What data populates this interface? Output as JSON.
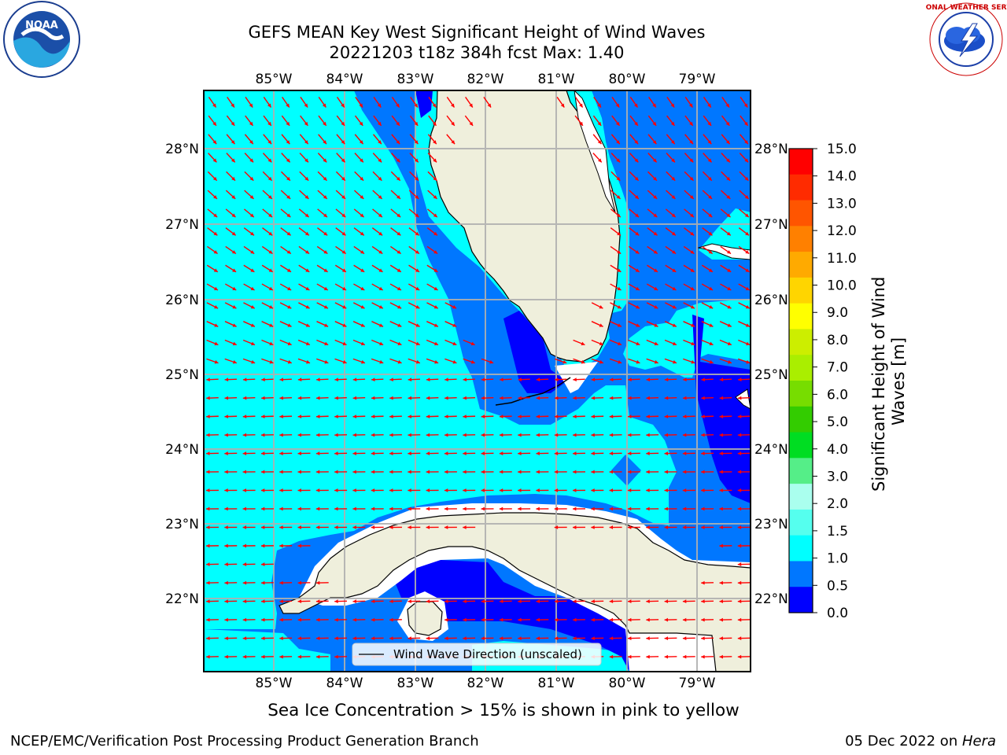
{
  "title": {
    "line1": "GEFS MEAN Key West Significant Height of Wind Waves",
    "line2": "20221203 t18z 384h fcst   Max: 1.40"
  },
  "map": {
    "lon_ticks": [
      "85°W",
      "84°W",
      "83°W",
      "82°W",
      "81°W",
      "80°W",
      "79°W"
    ],
    "lat_ticks": [
      "28°N",
      "27°N",
      "26°N",
      "25°N",
      "24°N",
      "23°N",
      "22°N"
    ],
    "legend_label": "Wind Wave Direction (unscaled)",
    "colors": {
      "land": "#efefdc",
      "frame": "#000000",
      "grid": "#b0b0b0",
      "arrow": "#ff0000"
    }
  },
  "colorbar": {
    "label_line1": "Significant Height of Wind",
    "label_line2": "Waves [m]",
    "ticks": [
      "15.0",
      "14.0",
      "13.0",
      "12.0",
      "11.0",
      "10.0",
      "9.0",
      "8.0",
      "7.0",
      "6.0",
      "5.0",
      "4.0",
      "3.0",
      "2.0",
      "1.5",
      "1.0",
      "0.5",
      "0.0"
    ],
    "colors_top_to_bottom": [
      "#ff0000",
      "#ff2b00",
      "#ff5500",
      "#ff8000",
      "#ffaa00",
      "#ffd500",
      "#ffff00",
      "#ccee00",
      "#aaee00",
      "#77dd00",
      "#33cc00",
      "#00dd22",
      "#55ee88",
      "#aaffee",
      "#55ffee",
      "#00ffff",
      "#0077ff",
      "#0000ff"
    ]
  },
  "caption": "Sea Ice Concentration > 15% is shown in pink to yellow",
  "footer": {
    "left": "NCEP/EMC/Verification Post Processing Product Generation Branch",
    "right_prefix": "05 Dec 2022 on ",
    "right_host": "Hera"
  },
  "logos": {
    "noaa_text": "NOAA",
    "nws_text": "NATIONAL WEATHER SERVICE"
  }
}
